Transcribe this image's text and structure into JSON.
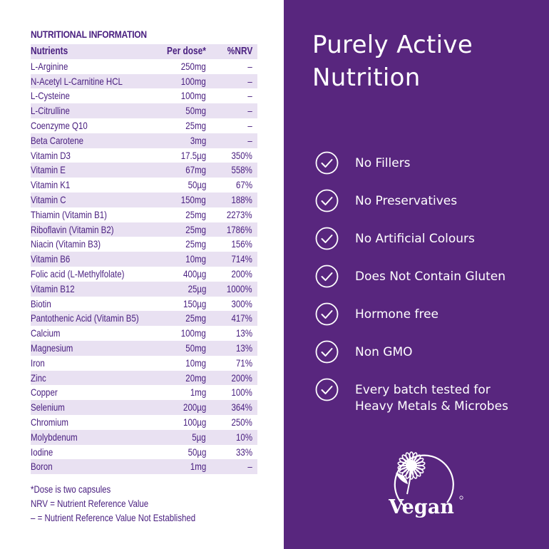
{
  "nutrition": {
    "title": "NUTRITIONAL INFORMATION",
    "headers": {
      "name": "Nutrients",
      "dose": "Per dose*",
      "nrv": "%NRV"
    },
    "rows": [
      {
        "name": "L-Arginine",
        "dose": "250mg",
        "nrv": "–"
      },
      {
        "name": "N-Acetyl L-Carnitine HCL",
        "dose": "100mg",
        "nrv": "–"
      },
      {
        "name": "L-Cysteine",
        "dose": "100mg",
        "nrv": "–"
      },
      {
        "name": "L-Citrulline",
        "dose": "50mg",
        "nrv": "–"
      },
      {
        "name": "Coenzyme Q10",
        "dose": "25mg",
        "nrv": "–"
      },
      {
        "name": "Beta Carotene",
        "dose": "3mg",
        "nrv": "–"
      },
      {
        "name": "Vitamin D3",
        "dose": "17.5µg",
        "nrv": "350%"
      },
      {
        "name": "Vitamin E",
        "dose": "67mg",
        "nrv": "558%"
      },
      {
        "name": "Vitamin K1",
        "dose": "50µg",
        "nrv": "67%"
      },
      {
        "name": "Vitamin C",
        "dose": "150mg",
        "nrv": "188%"
      },
      {
        "name": "Thiamin (Vitamin B1)",
        "dose": "25mg",
        "nrv": "2273%"
      },
      {
        "name": "Riboflavin (Vitamin B2)",
        "dose": "25mg",
        "nrv": "1786%"
      },
      {
        "name": "Niacin (Vitamin B3)",
        "dose": "25mg",
        "nrv": "156%"
      },
      {
        "name": "Vitamin B6",
        "dose": "10mg",
        "nrv": "714%"
      },
      {
        "name": "Folic acid (L-Methylfolate)",
        "dose": "400µg",
        "nrv": "200%"
      },
      {
        "name": "Vitamin B12",
        "dose": "25µg",
        "nrv": "1000%"
      },
      {
        "name": "Biotin",
        "dose": "150µg",
        "nrv": "300%"
      },
      {
        "name": "Pantothenic Acid (Vitamin B5)",
        "dose": "25mg",
        "nrv": "417%"
      },
      {
        "name": "Calcium",
        "dose": "100mg",
        "nrv": "13%"
      },
      {
        "name": "Magnesium",
        "dose": "50mg",
        "nrv": "13%"
      },
      {
        "name": "Iron",
        "dose": "10mg",
        "nrv": "71%"
      },
      {
        "name": "Zinc",
        "dose": "20mg",
        "nrv": "200%"
      },
      {
        "name": "Copper",
        "dose": "1mg",
        "nrv": "100%"
      },
      {
        "name": "Selenium",
        "dose": "200µg",
        "nrv": "364%"
      },
      {
        "name": "Chromium",
        "dose": "100µg",
        "nrv": "250%"
      },
      {
        "name": "Molybdenum",
        "dose": "5µg",
        "nrv": "10%"
      },
      {
        "name": "Iodine",
        "dose": "50µg",
        "nrv": "33%"
      },
      {
        "name": "Boron",
        "dose": "1mg",
        "nrv": "–"
      }
    ],
    "notes": [
      "*Dose is two capsules",
      "NRV = Nutrient Reference Value",
      "– = Nutrient Reference Value Not Established"
    ]
  },
  "headline": {
    "line1": "Purely Active",
    "line2": "Nutrition"
  },
  "features": [
    {
      "icon": "check-circle-icon",
      "lines": [
        "No Fillers"
      ]
    },
    {
      "icon": "check-circle-icon",
      "lines": [
        "No Preservatives"
      ]
    },
    {
      "icon": "check-circle-icon",
      "lines": [
        "No Artificial Colours"
      ]
    },
    {
      "icon": "check-circle-icon",
      "lines": [
        "Does Not Contain Gluten"
      ]
    },
    {
      "icon": "check-circle-icon",
      "lines": [
        "Hormone free"
      ]
    },
    {
      "icon": "check-circle-icon",
      "lines": [
        "Non GMO"
      ]
    },
    {
      "icon": "check-circle-icon",
      "lines": [
        "Every batch tested for",
        "Heavy Metals & Microbes"
      ]
    }
  ],
  "vegan_logo": {
    "icon": "vegan-sunflower-logo",
    "text": "Vegan"
  },
  "colors": {
    "brand_purple": "#58267e",
    "text_purple": "#4a2080",
    "row_shade": "#e9e1f2",
    "white": "#ffffff"
  }
}
